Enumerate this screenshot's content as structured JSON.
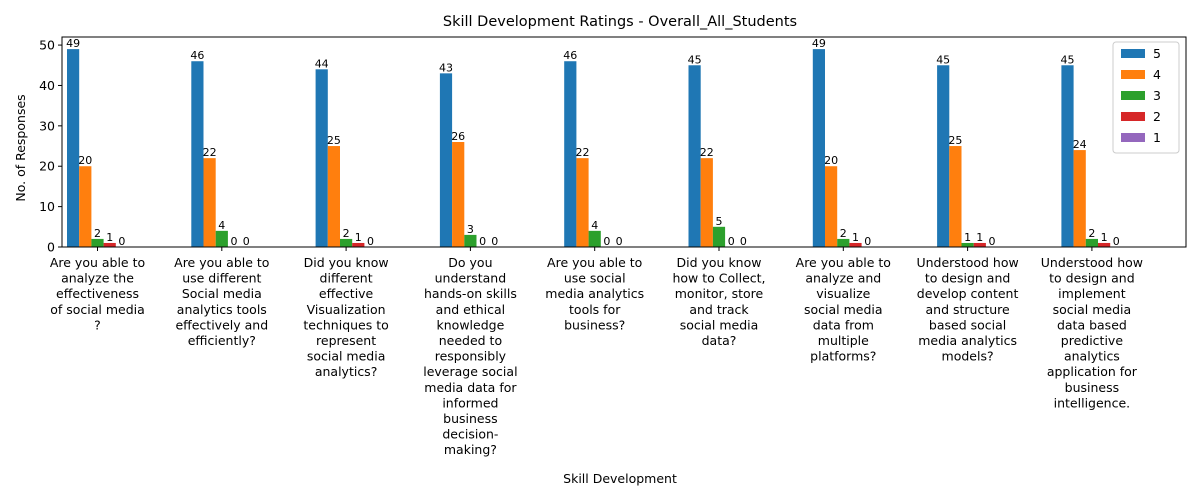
{
  "chart_data": {
    "type": "bar",
    "title": "Skill Development Ratings - Overall_All_Students",
    "xlabel": "Skill Development",
    "ylabel": "No. of Responses",
    "ylim": [
      0,
      52
    ],
    "yticks": [
      0,
      10,
      20,
      30,
      40,
      50
    ],
    "grid": false,
    "legend_position": "top-right",
    "categories": [
      "Are you able to analyze the effectiveness of social media ?",
      "Are you able to use different Social media analytics tools effectively and efficiently?",
      "Did you know different effective Visualization techniques to represent social media analytics?",
      "Do you understand hands-on skills and ethical knowledge needed to responsibly leverage social media data for informed business decision-making?",
      "Are you able to use social media analytics tools for business?",
      "Did you know how to Collect, monitor, store and track social media data?",
      "Are you able to analyze and visualize social media data from multiple platforms?",
      "Understood how to design and develop content and structure based social media analytics models?",
      "Understood how to design and implement social media data based predictive analytics application for business intelligence."
    ],
    "category_lines": [
      [
        "Are you able to",
        "analyze the",
        "effectiveness",
        "of social media",
        "?"
      ],
      [
        "Are you able to",
        "use different",
        "Social media",
        "analytics tools",
        "effectively and",
        "efficiently?"
      ],
      [
        "Did you know",
        "different",
        "effective",
        "Visualization",
        "techniques to",
        "represent",
        "social media",
        "analytics?"
      ],
      [
        "Do you",
        "understand",
        "hands-on skills",
        "and ethical",
        "knowledge",
        "needed to",
        "responsibly",
        "leverage social",
        "media data for",
        "informed",
        "business",
        "decision-",
        "making?"
      ],
      [
        "Are you able to",
        "use social",
        "media analytics",
        "tools for",
        "business?"
      ],
      [
        "Did you know",
        "how to Collect,",
        "monitor, store",
        "and track",
        "social media",
        "data?"
      ],
      [
        "Are you able to",
        "analyze and",
        "visualize",
        "social media",
        "data from",
        "multiple",
        "platforms?"
      ],
      [
        "Understood how",
        "to design and",
        "develop content",
        "and structure",
        "based social",
        "media analytics",
        "models?"
      ],
      [
        "Understood how",
        "to design and",
        "implement",
        "social media",
        "data based",
        "predictive",
        "analytics",
        "application for",
        "business",
        "intelligence."
      ]
    ],
    "series": [
      {
        "name": "5",
        "color": "#1f77b4",
        "values": [
          49,
          46,
          44,
          43,
          46,
          45,
          49,
          45,
          45
        ]
      },
      {
        "name": "4",
        "color": "#ff7f0e",
        "values": [
          20,
          22,
          25,
          26,
          22,
          22,
          20,
          25,
          24
        ]
      },
      {
        "name": "3",
        "color": "#2ca02c",
        "values": [
          2,
          4,
          2,
          3,
          4,
          5,
          2,
          1,
          2
        ]
      },
      {
        "name": "2",
        "color": "#d62728",
        "values": [
          1,
          0,
          1,
          0,
          0,
          0,
          1,
          1,
          1
        ]
      },
      {
        "name": "1",
        "color": "#9467bd",
        "values": [
          null,
          null,
          null,
          null,
          null,
          null,
          null,
          null,
          null
        ]
      }
    ],
    "data_labels": [
      [
        "49",
        "20",
        "2",
        "1",
        "0"
      ],
      [
        "46",
        "22",
        "4",
        "0",
        "0"
      ],
      [
        "44",
        "25",
        "2",
        "1",
        "0"
      ],
      [
        "43",
        "26",
        "3",
        "0",
        "0"
      ],
      [
        "46",
        "22",
        "4",
        "0",
        "0"
      ],
      [
        "45",
        "22",
        "5",
        "0",
        "0"
      ],
      [
        "49",
        "20",
        "2",
        "1",
        "0"
      ],
      [
        "45",
        "25",
        "1",
        "1",
        "0"
      ],
      [
        "45",
        "24",
        "2",
        "1",
        "0"
      ]
    ]
  }
}
